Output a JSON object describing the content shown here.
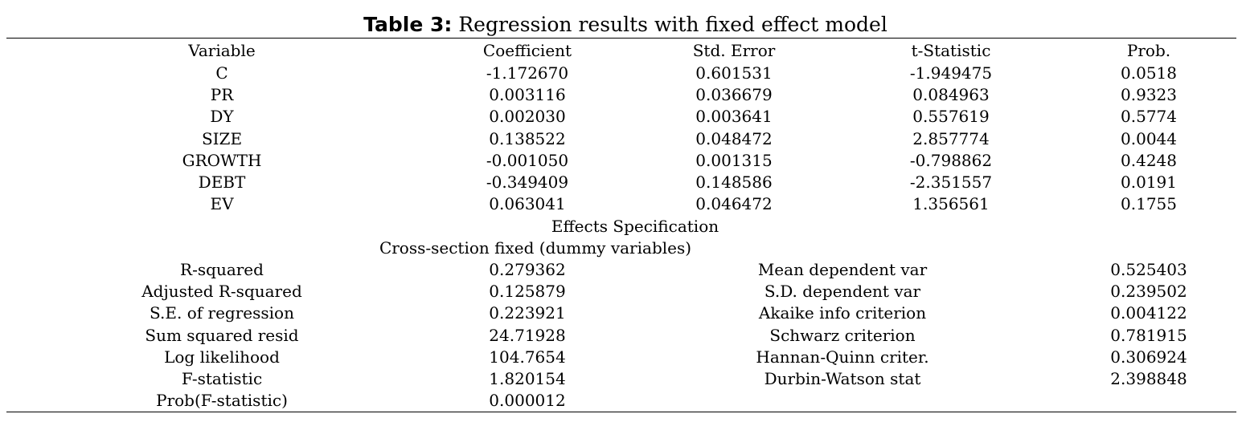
{
  "caption": {
    "label": "Table 3:",
    "text": " Regression results with fixed effect model"
  },
  "header": {
    "variable": "Variable",
    "coefficient": "Coefficient",
    "std_error": "Std. Error",
    "t_statistic": "t-Statistic",
    "prob": "Prob."
  },
  "rows": [
    {
      "variable": "C",
      "coefficient": "-1.172670",
      "std_error": "0.601531",
      "t_statistic": "-1.949475",
      "prob": "0.0518"
    },
    {
      "variable": "PR",
      "coefficient": "0.003116",
      "std_error": "0.036679",
      "t_statistic": "0.084963",
      "prob": "0.9323"
    },
    {
      "variable": "DY",
      "coefficient": "0.002030",
      "std_error": "0.003641",
      "t_statistic": "0.557619",
      "prob": "0.5774"
    },
    {
      "variable": "SIZE",
      "coefficient": "0.138522",
      "std_error": "0.048472",
      "t_statistic": "2.857774",
      "prob": "0.0044"
    },
    {
      "variable": "GROWTH",
      "coefficient": "-0.001050",
      "std_error": "0.001315",
      "t_statistic": "-0.798862",
      "prob": "0.4248"
    },
    {
      "variable": "DEBT",
      "coefficient": "-0.349409",
      "std_error": "0.148586",
      "t_statistic": "-2.351557",
      "prob": "0.0191"
    },
    {
      "variable": "EV",
      "coefficient": "0.063041",
      "std_error": "0.046472",
      "t_statistic": "1.356561",
      "prob": "0.1755"
    }
  ],
  "effects": {
    "heading": "Effects Specification",
    "subheading": "Cross-section fixed (dummy variables)"
  },
  "stats": [
    {
      "label": "R-squared",
      "value": "0.279362",
      "label2": "Mean dependent var",
      "value2": "0.525403"
    },
    {
      "label": "Adjusted R-squared",
      "value": "0.125879",
      "label2": "S.D. dependent var",
      "value2": "0.239502"
    },
    {
      "label": "S.E. of regression",
      "value": "0.223921",
      "label2": "Akaike info criterion",
      "value2": "0.004122"
    },
    {
      "label": "Sum squared resid",
      "value": "24.71928",
      "label2": "Schwarz criterion",
      "value2": "0.781915"
    },
    {
      "label": "Log likelihood",
      "value": "104.7654",
      "label2": "Hannan-Quinn criter.",
      "value2": "0.306924"
    },
    {
      "label": "F-statistic",
      "value": "1.820154",
      "label2": "Durbin-Watson stat",
      "value2": "2.398848"
    },
    {
      "label": "Prob(F-statistic)",
      "value": "0.000012",
      "label2": "",
      "value2": ""
    }
  ]
}
